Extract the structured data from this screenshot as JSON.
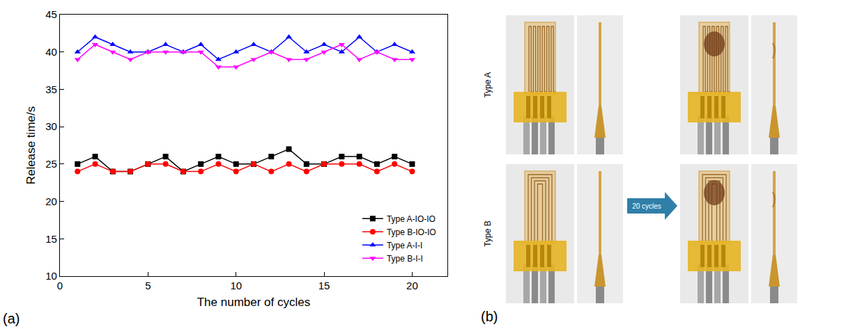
{
  "chart_data": {
    "type": "line",
    "x_label": "The number of cycles",
    "y_label": "Release time/s",
    "annotations": [
      "(a)"
    ],
    "x": [
      1,
      2,
      3,
      4,
      5,
      6,
      7,
      8,
      9,
      10,
      11,
      12,
      13,
      14,
      15,
      16,
      17,
      18,
      19,
      20
    ],
    "series": [
      {
        "name": "Type A-IO-IO",
        "color": "#000000",
        "marker": "square",
        "values": [
          25,
          26,
          24,
          24,
          25,
          26,
          24,
          25,
          26,
          25,
          25,
          26,
          27,
          25,
          25,
          26,
          26,
          25,
          26,
          25
        ]
      },
      {
        "name": "Type B-IO-IO",
        "color": "#ff0000",
        "marker": "circle",
        "values": [
          24,
          25,
          24,
          24,
          25,
          25,
          24,
          24,
          25,
          24,
          25,
          24,
          25,
          24,
          25,
          25,
          25,
          24,
          25,
          24
        ]
      },
      {
        "name": "Type A-I-I",
        "color": "#0000ff",
        "marker": "triangle-up",
        "values": [
          40,
          42,
          41,
          40,
          40,
          41,
          40,
          41,
          39,
          40,
          41,
          40,
          42,
          40,
          41,
          40,
          42,
          40,
          41,
          40
        ]
      },
      {
        "name": "Type B-I-I",
        "color": "#ff00ff",
        "marker": "triangle-down",
        "values": [
          39,
          41,
          40,
          39,
          40,
          40,
          40,
          40,
          38,
          38,
          39,
          40,
          39,
          39,
          40,
          41,
          39,
          40,
          39,
          39
        ]
      }
    ],
    "xlim": [
      0,
      22
    ],
    "xticks": [
      0,
      5,
      10,
      15,
      20
    ],
    "ylim": [
      10,
      45
    ],
    "yticks": [
      10,
      15,
      20,
      25,
      30,
      35,
      40,
      45
    ],
    "grid": false,
    "legend": "lower right"
  },
  "figure_b": {
    "label": "(b)",
    "rows": [
      "Type A",
      "Type B"
    ],
    "arrow_label": "20 cycles"
  }
}
